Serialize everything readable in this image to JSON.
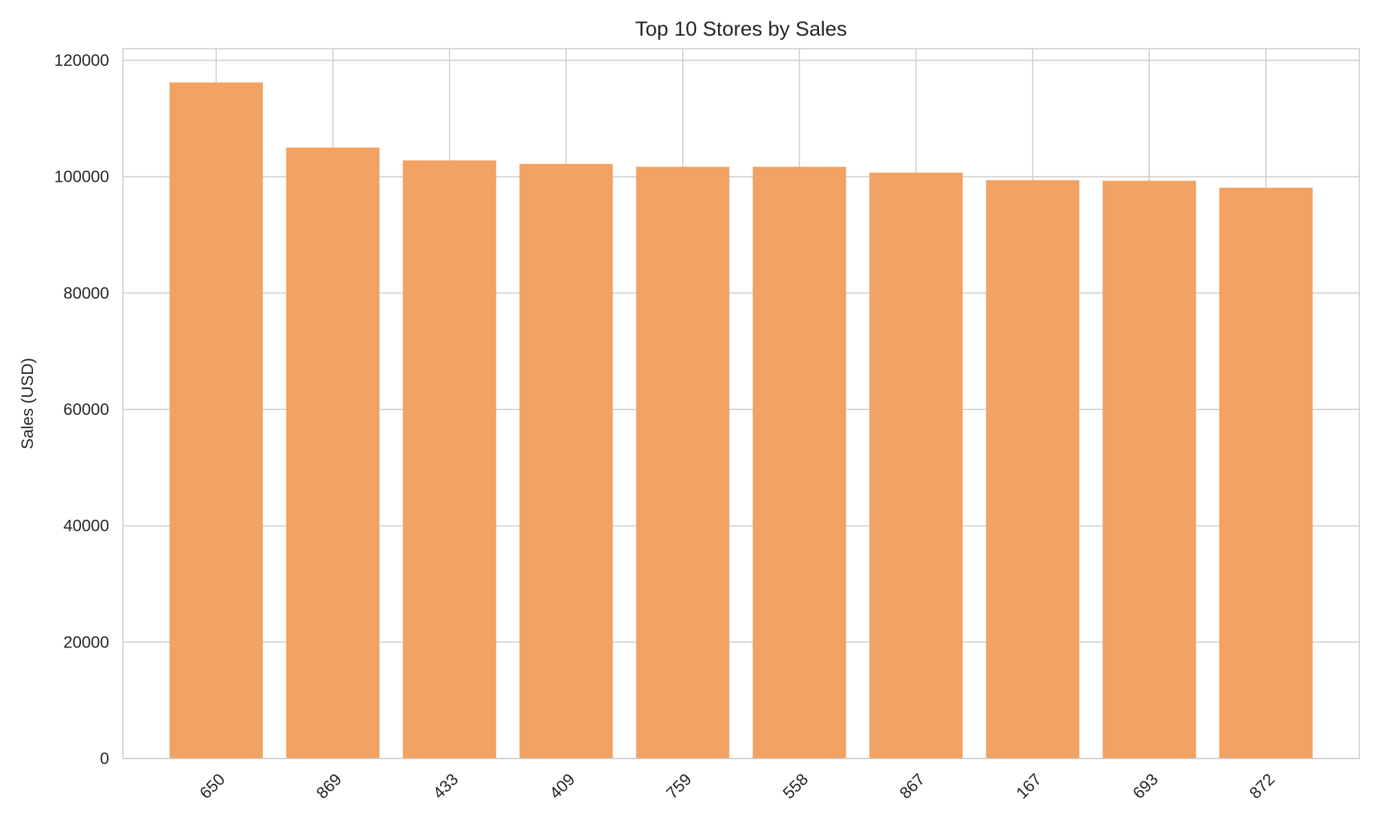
{
  "chart_data": {
    "type": "bar",
    "title": "Top 10 Stores by Sales",
    "xlabel": "",
    "ylabel": "Sales (USD)",
    "categories": [
      "650",
      "869",
      "433",
      "409",
      "759",
      "558",
      "867",
      "167",
      "693",
      "872"
    ],
    "values": [
      116200,
      105000,
      102800,
      102200,
      101700,
      101700,
      100700,
      99400,
      99300,
      98100
    ],
    "ylim": [
      0,
      122000
    ],
    "yticks": [
      0,
      20000,
      40000,
      60000,
      80000,
      100000,
      120000
    ],
    "grid": true,
    "legend": "none",
    "colors": {
      "bar": "#f2a262",
      "grid": "#cccccc",
      "axes_frame": "#cccccc",
      "background": "#ffffff",
      "text": "#262626"
    }
  }
}
